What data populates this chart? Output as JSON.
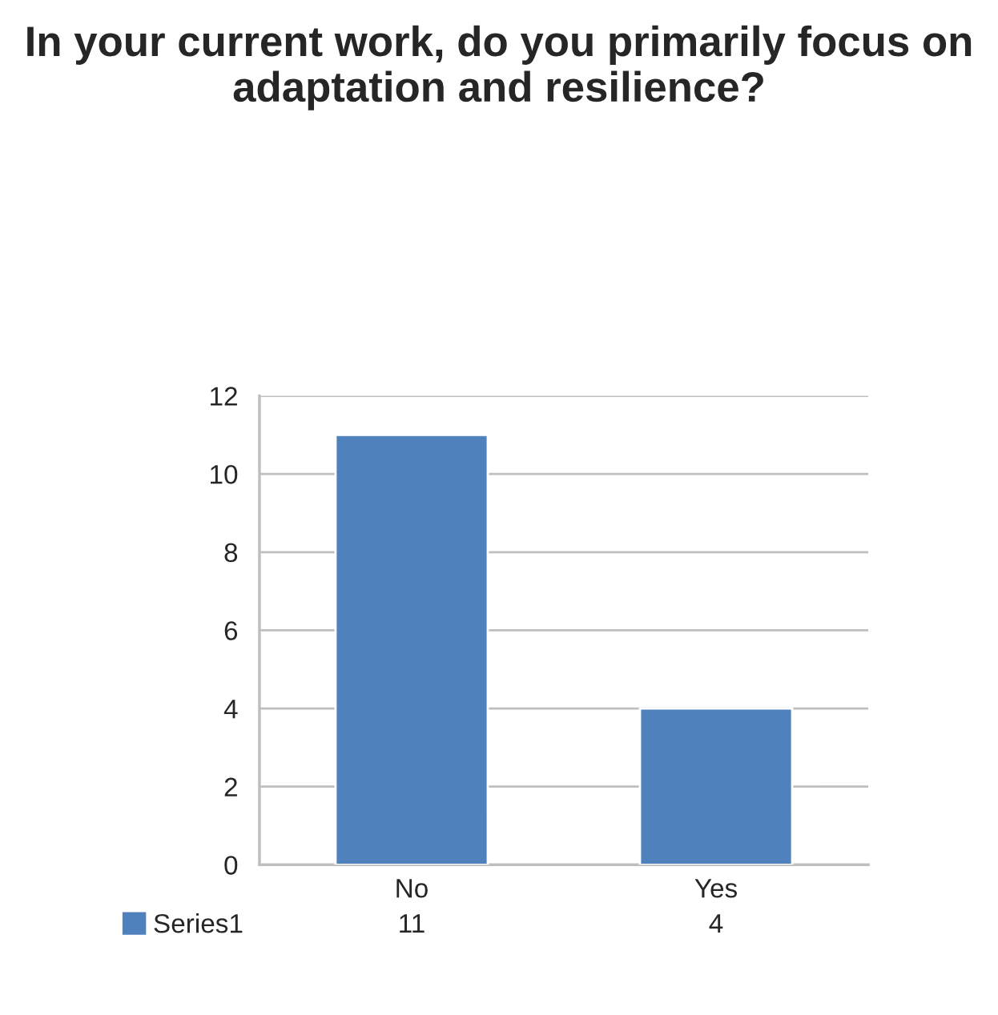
{
  "chart_data": {
    "type": "bar",
    "title": "In your current work, do you primarily focus on adaptation and resilience?",
    "categories": [
      "No",
      "Yes"
    ],
    "series": [
      {
        "name": "Series1",
        "color": "#4f81bd",
        "values": [
          11,
          4
        ]
      }
    ],
    "ylim": [
      0,
      12
    ],
    "yticks": [
      0,
      2,
      4,
      6,
      8,
      10,
      12
    ],
    "grid": "y",
    "data_labels": true,
    "legend": "bottom left"
  }
}
